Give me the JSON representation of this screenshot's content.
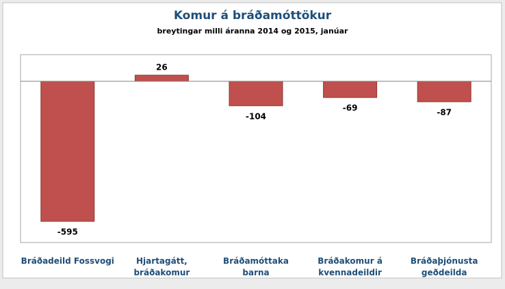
{
  "chart_data": {
    "type": "bar",
    "title": "Komur á bráðamóttökur",
    "subtitle": "breytingar milli áranna 2014 og 2015, janúar",
    "categories": [
      "Bráðadeild Fossvogi",
      "Hjartagátt, bráðakomur",
      "Bráðamóttaka barna",
      "Bráðakomur á kvennadeildir",
      "Bráðaþjónusta geðdeilda"
    ],
    "values": [
      -595,
      26,
      -104,
      -69,
      -87
    ],
    "color": "#c0504d"
  }
}
